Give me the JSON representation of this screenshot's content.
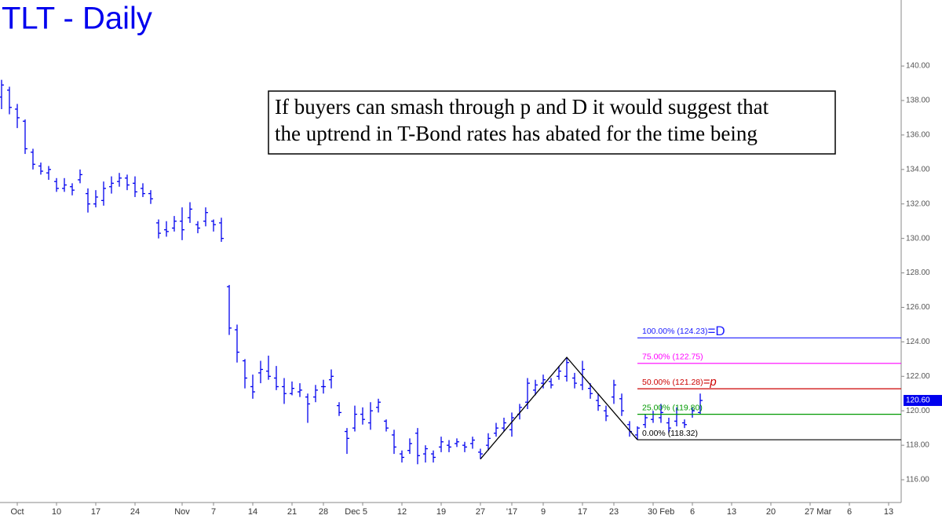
{
  "chart_data": {
    "type": "ohlc",
    "title": "TLT - Daily",
    "annotation": [
      "If buyers can smash through p and D it would suggest that",
      "the uptrend in T-Bond rates has abated for the time being"
    ],
    "color": "#0000ee",
    "categories": [
      null,
      null,
      "Oct",
      null,
      null,
      null,
      null,
      "10",
      null,
      null,
      null,
      null,
      "17",
      null,
      null,
      null,
      null,
      "24",
      null,
      null,
      null,
      null,
      null,
      "Nov",
      null,
      null,
      null,
      "7",
      null,
      null,
      null,
      null,
      "14",
      null,
      null,
      null,
      null,
      "21",
      null,
      null,
      null,
      "28",
      null,
      null,
      null,
      null,
      "Dec 5",
      null,
      null,
      null,
      null,
      "12",
      null,
      null,
      null,
      null,
      "19",
      null,
      null,
      null,
      null,
      "27",
      null,
      null,
      null,
      "'17",
      null,
      null,
      null,
      "9",
      null,
      null,
      null,
      null,
      "17",
      null,
      null,
      null,
      "23",
      null,
      null,
      null,
      null,
      "30 Feb",
      null,
      null,
      null,
      null,
      "6",
      null,
      null,
      null,
      null,
      "13",
      null,
      null,
      null,
      null,
      "20",
      null,
      null,
      null,
      null,
      "27 Mar",
      null,
      null,
      null,
      null,
      "6",
      null,
      null,
      null,
      null,
      "13"
    ],
    "open": [
      138.2,
      138.6,
      137.5,
      136.8,
      135.0,
      134.2,
      133.8,
      133.3,
      132.9,
      133.0,
      133.4,
      132.6,
      132.0,
      132.2,
      133.0,
      133.3,
      133.5,
      133.2,
      132.9,
      132.6,
      130.9,
      130.5,
      130.6,
      131.0,
      131.2,
      130.8,
      131.0,
      131.0,
      130.9,
      127.2,
      124.7,
      122.9,
      121.4,
      122.2,
      122.3,
      121.9,
      121.4,
      121.0,
      121.1,
      120.8,
      120.8,
      121.4,
      121.8,
      120.3,
      118.8,
      119.0,
      119.8,
      119.3,
      120.2,
      119.4,
      118.6,
      117.5,
      117.7,
      118.7,
      117.5,
      117.5,
      117.9,
      118.0,
      118.1,
      118.0,
      118.1,
      117.6,
      118.0,
      118.7,
      119.0,
      118.9,
      119.8,
      120.5,
      121.2,
      121.6,
      121.7,
      122.0,
      122.0,
      121.9,
      121.5,
      121.3,
      120.6,
      120.0,
      120.8,
      120.7,
      119.2,
      118.6,
      119.2,
      119.5,
      119.6,
      119.3,
      119.4,
      119.3,
      119.8,
      119.9,
      null,
      null,
      null,
      null,
      null,
      null,
      null,
      null,
      null,
      null,
      null,
      null,
      null,
      null,
      null,
      null,
      null,
      null,
      null,
      null,
      null,
      null,
      null,
      null
    ],
    "high": [
      139.2,
      138.8,
      137.8,
      136.9,
      135.2,
      134.4,
      134.2,
      133.5,
      133.5,
      133.2,
      134.0,
      132.9,
      132.8,
      133.3,
      133.6,
      133.8,
      133.7,
      133.6,
      133.2,
      132.8,
      131.1,
      131.0,
      131.3,
      131.8,
      132.1,
      131.0,
      131.8,
      131.1,
      131.2,
      127.3,
      125.0,
      123.0,
      122.1,
      122.9,
      123.2,
      122.6,
      121.9,
      121.7,
      121.6,
      121.0,
      121.5,
      121.8,
      122.4,
      120.5,
      119.0,
      120.3,
      120.2,
      120.5,
      120.7,
      119.5,
      118.9,
      117.7,
      118.4,
      119.0,
      118.0,
      117.7,
      118.5,
      118.3,
      118.4,
      118.2,
      118.5,
      117.8,
      118.7,
      119.3,
      119.6,
      119.9,
      120.4,
      121.9,
      121.8,
      122.1,
      121.9,
      122.6,
      123.1,
      122.2,
      122.9,
      121.6,
      121.0,
      120.3,
      121.8,
      121.0,
      119.4,
      119.1,
      119.8,
      120.0,
      120.4,
      119.6,
      120.2,
      119.5,
      120.2,
      121.0,
      null,
      null,
      null,
      null,
      null,
      null,
      null,
      null,
      null,
      null,
      null,
      null,
      null,
      null,
      null,
      null,
      null,
      null,
      null,
      null,
      null,
      null,
      null,
      null
    ],
    "low": [
      137.5,
      137.2,
      136.4,
      134.9,
      134.0,
      133.7,
      133.4,
      132.7,
      132.7,
      132.5,
      133.2,
      131.5,
      131.8,
      131.9,
      132.6,
      133.0,
      132.8,
      132.4,
      132.4,
      132.0,
      130.0,
      130.1,
      130.4,
      129.9,
      130.9,
      130.3,
      130.7,
      130.4,
      129.8,
      124.4,
      122.8,
      121.3,
      120.7,
      121.6,
      121.8,
      121.2,
      120.4,
      120.9,
      120.8,
      119.3,
      120.5,
      121.0,
      121.3,
      119.7,
      117.5,
      118.8,
      119.2,
      118.9,
      119.9,
      118.8,
      117.5,
      117.0,
      117.5,
      116.9,
      117.0,
      117.0,
      117.6,
      117.6,
      117.9,
      117.6,
      117.8,
      117.2,
      117.7,
      118.5,
      118.8,
      118.5,
      119.5,
      120.1,
      120.9,
      121.3,
      121.3,
      121.8,
      121.7,
      121.3,
      121.2,
      120.7,
      120.0,
      119.4,
      120.4,
      119.7,
      118.5,
      118.32,
      119.0,
      119.3,
      119.3,
      118.7,
      119.1,
      119.0,
      119.6,
      119.8,
      null,
      null,
      null,
      null,
      null,
      null,
      null,
      null,
      null,
      null,
      null,
      null,
      null,
      null,
      null,
      null,
      null,
      null,
      null,
      null,
      null,
      null,
      null,
      null
    ],
    "close": [
      138.9,
      137.6,
      137.0,
      135.2,
      134.3,
      133.9,
      134.0,
      132.9,
      133.1,
      132.8,
      133.7,
      132.0,
      132.4,
      132.9,
      133.2,
      133.5,
      133.1,
      132.7,
      132.6,
      132.3,
      130.3,
      130.4,
      131.0,
      130.5,
      131.7,
      130.6,
      131.5,
      130.8,
      130.0,
      124.8,
      123.4,
      121.9,
      121.1,
      122.4,
      122.0,
      121.4,
      121.0,
      121.3,
      121.2,
      120.4,
      121.2,
      121.4,
      122.0,
      119.9,
      118.4,
      119.8,
      119.5,
      120.0,
      120.5,
      119.0,
      117.9,
      117.3,
      118.1,
      117.4,
      117.8,
      117.3,
      118.2,
      117.9,
      118.2,
      117.9,
      118.3,
      117.5,
      118.4,
      119.0,
      119.3,
      119.6,
      120.2,
      121.6,
      121.5,
      121.8,
      121.5,
      122.3,
      122.8,
      121.6,
      122.4,
      121.0,
      120.3,
      119.7,
      121.5,
      120.0,
      118.8,
      119.0,
      119.6,
      119.8,
      119.9,
      119.0,
      119.8,
      119.2,
      120.0,
      120.6,
      null,
      null,
      null,
      null,
      null,
      null,
      null,
      null,
      null,
      null,
      null,
      null,
      null,
      null,
      null,
      null,
      null,
      null,
      null,
      null,
      null,
      null,
      null,
      null
    ],
    "zigzag": [
      117.2,
      123.1,
      118.32
    ],
    "fib_levels": [
      {
        "label": "100.00% (124.23)",
        "value": 124.23,
        "color": "#1a1aff",
        "tag": "=D"
      },
      {
        "label": "75.00% (122.75)",
        "value": 122.75,
        "color": "#ff00ff"
      },
      {
        "label": "50.00% (121.28)",
        "value": 121.28,
        "color": "#cc0000",
        "tag": "=p"
      },
      {
        "label": "25.00% (119.80)",
        "value": 119.8,
        "color": "#009900"
      },
      {
        "label": "0.00% (118.32)",
        "value": 118.32,
        "color": "#000000"
      }
    ],
    "last_price": {
      "value": 120.6,
      "label": "120.60"
    },
    "ylim": [
      114.68,
      143.83
    ],
    "yticks": [
      {
        "value": 116,
        "label": "116.00"
      },
      {
        "value": 118,
        "label": "118.00"
      },
      {
        "value": 120,
        "label": "120.00"
      },
      {
        "value": 122,
        "label": "122.00"
      },
      {
        "value": 124,
        "label": "124.00"
      },
      {
        "value": 126,
        "label": "126.00"
      },
      {
        "value": 128,
        "label": "128.00"
      },
      {
        "value": 130,
        "label": "130.00"
      },
      {
        "value": 132,
        "label": "132.00"
      },
      {
        "value": 134,
        "label": "134.00"
      },
      {
        "value": 136,
        "label": "136.00"
      },
      {
        "value": 138,
        "label": "138.00"
      },
      {
        "value": 140,
        "label": "140.00"
      }
    ]
  }
}
